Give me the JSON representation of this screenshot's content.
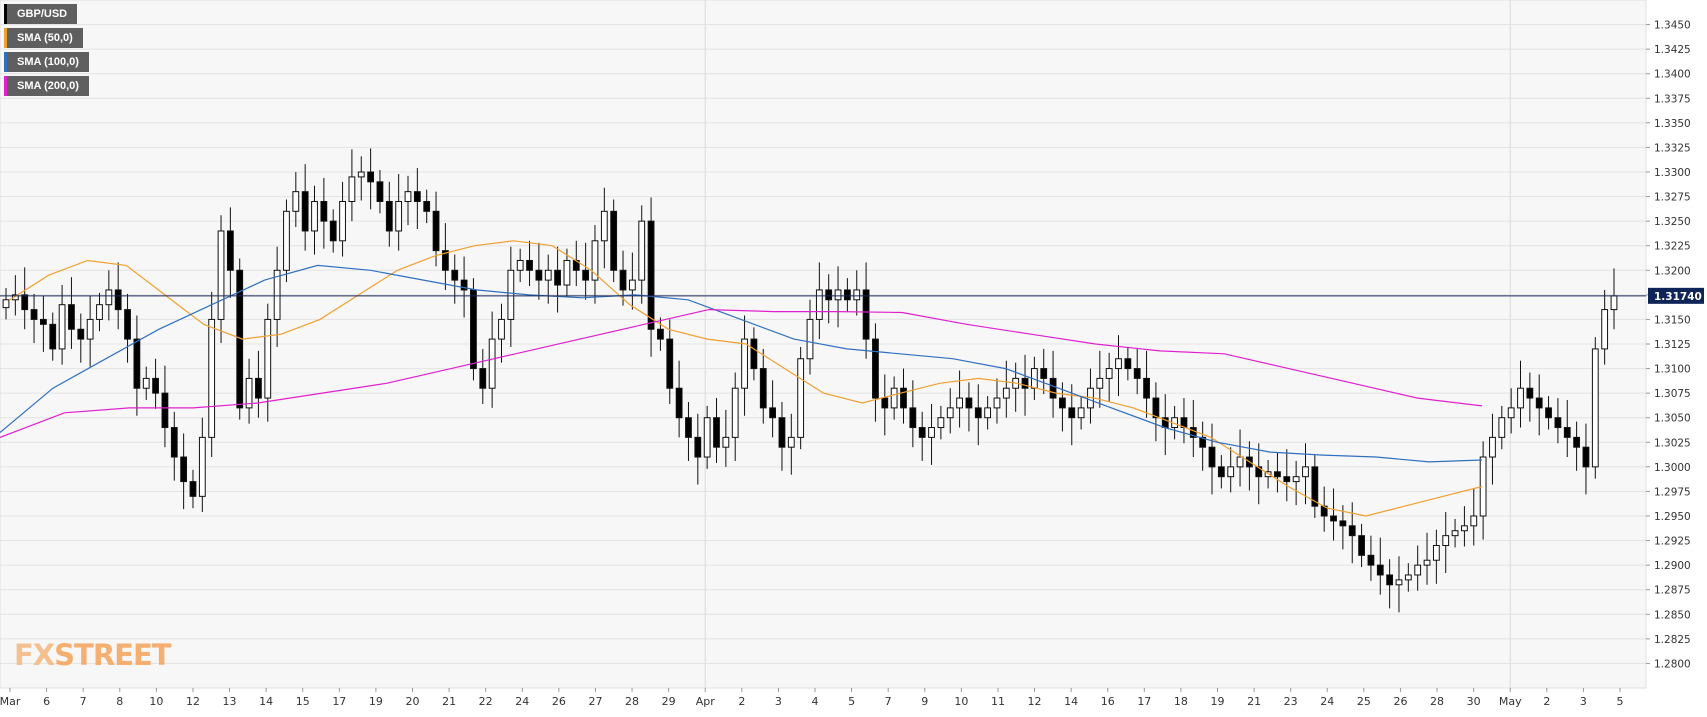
{
  "chart_data": {
    "type": "candlestick",
    "symbol": "GBP/USD",
    "ylim": [
      1.2775,
      1.3475
    ],
    "y_ticks": [
      "1.3450",
      "1.3425",
      "1.3400",
      "1.3375",
      "1.3350",
      "1.3325",
      "1.3300",
      "1.3275",
      "1.3250",
      "1.3225",
      "1.3200",
      "1.3175",
      "1.3150",
      "1.3125",
      "1.3100",
      "1.3075",
      "1.3050",
      "1.3025",
      "1.3000",
      "1.2975",
      "1.2950",
      "1.2925",
      "1.2900",
      "1.2875",
      "1.2850",
      "1.2825",
      "1.2800"
    ],
    "x_ticks": [
      "Mar",
      "6",
      "7",
      "8",
      "10",
      "12",
      "13",
      "14",
      "15",
      "17",
      "19",
      "20",
      "21",
      "22",
      "24",
      "26",
      "27",
      "28",
      "29",
      "Apr",
      "2",
      "3",
      "4",
      "5",
      "7",
      "9",
      "10",
      "11",
      "12",
      "14",
      "16",
      "17",
      "18",
      "19",
      "21",
      "23",
      "24",
      "25",
      "26",
      "28",
      "30",
      "May",
      "2",
      "3",
      "5"
    ],
    "current_price": 1.3174,
    "current_price_label": "1.31740",
    "ohlc_close_path": [
      1.317,
      1.3175,
      1.316,
      1.315,
      1.3145,
      1.312,
      1.3165,
      1.314,
      1.313,
      1.315,
      1.3165,
      1.318,
      1.316,
      1.313,
      1.308,
      1.309,
      1.3075,
      1.304,
      1.301,
      1.2985,
      1.297,
      1.303,
      1.315,
      1.324,
      1.32,
      1.306,
      1.309,
      1.307,
      1.315,
      1.32,
      1.326,
      1.328,
      1.324,
      1.327,
      1.325,
      1.323,
      1.327,
      1.3295,
      1.33,
      1.329,
      1.327,
      1.324,
      1.327,
      1.328,
      1.327,
      1.326,
      1.322,
      1.32,
      1.319,
      1.318,
      1.31,
      1.308,
      1.313,
      1.315,
      1.32,
      1.321,
      1.32,
      1.319,
      1.32,
      1.3185,
      1.321,
      1.32,
      1.319,
      1.323,
      1.326,
      1.32,
      1.318,
      1.319,
      1.325,
      1.314,
      1.313,
      1.308,
      1.305,
      1.303,
      1.301,
      1.305,
      1.302,
      1.303,
      1.308,
      1.313,
      1.31,
      1.306,
      1.305,
      1.302,
      1.303,
      1.311,
      1.315,
      1.318,
      1.317,
      1.318,
      1.317,
      1.318,
      1.313,
      1.307,
      1.306,
      1.308,
      1.306,
      1.304,
      1.303,
      1.304,
      1.305,
      1.306,
      1.307,
      1.306,
      1.305,
      1.306,
      1.307,
      1.308,
      1.309,
      1.308,
      1.31,
      1.309,
      1.307,
      1.306,
      1.305,
      1.306,
      1.308,
      1.309,
      1.31,
      1.311,
      1.31,
      1.309,
      1.307,
      1.305,
      1.304,
      1.305,
      1.304,
      1.303,
      1.302,
      1.3,
      1.299,
      1.3,
      1.301,
      1.3,
      1.299,
      1.2995,
      1.299,
      1.2985,
      1.299,
      1.3,
      1.296,
      1.295,
      1.2945,
      1.294,
      1.293,
      1.291,
      1.29,
      1.289,
      1.288,
      1.2885,
      1.289,
      1.29,
      1.2905,
      1.292,
      1.293,
      1.2935,
      1.294,
      1.295,
      1.301,
      1.303,
      1.305,
      1.306,
      1.308,
      1.307,
      1.306,
      1.305,
      1.304,
      1.303,
      1.302,
      1.3,
      1.312,
      1.316,
      1.3174
    ],
    "series": [
      {
        "name": "SMA (50,0)",
        "color": "#f0a030",
        "values": [
          1.317,
          1.3195,
          1.321,
          1.3205,
          1.3175,
          1.3145,
          1.313,
          1.3135,
          1.315,
          1.3175,
          1.32,
          1.3215,
          1.3225,
          1.323,
          1.3225,
          1.32,
          1.3165,
          1.314,
          1.313,
          1.3125,
          1.31,
          1.3075,
          1.3065,
          1.3075,
          1.3085,
          1.309,
          1.3085,
          1.3075,
          1.307,
          1.306,
          1.3045,
          1.303,
          1.3005,
          1.298,
          1.2958,
          1.295,
          1.296,
          1.297,
          1.298
        ]
      },
      {
        "name": "SMA (100,0)",
        "color": "#3070c0",
        "values": [
          1.3035,
          1.308,
          1.311,
          1.314,
          1.3165,
          1.319,
          1.3205,
          1.32,
          1.319,
          1.318,
          1.3175,
          1.3172,
          1.3175,
          1.317,
          1.315,
          1.313,
          1.312,
          1.3115,
          1.311,
          1.31,
          1.308,
          1.306,
          1.304,
          1.3025,
          1.3015,
          1.3012,
          1.301,
          1.3005,
          1.3007
        ]
      },
      {
        "name": "SMA (200,0)",
        "color": "#e020d0",
        "values": [
          1.303,
          1.3055,
          1.306,
          1.306,
          1.3065,
          1.3075,
          1.3085,
          1.31,
          1.3115,
          1.313,
          1.3145,
          1.316,
          1.3158,
          1.3158,
          1.3157,
          1.3145,
          1.3135,
          1.3125,
          1.3118,
          1.3115,
          1.31,
          1.3085,
          1.307,
          1.3062
        ]
      }
    ]
  },
  "legend": [
    {
      "label": "GBP/USD",
      "color": "#000000"
    },
    {
      "label": "SMA (50,0)",
      "color": "#f0a030"
    },
    {
      "label": "SMA (100,0)",
      "color": "#3070c0"
    },
    {
      "label": "SMA (200,0)",
      "color": "#e020d0"
    }
  ],
  "brand": {
    "prefix": "FX",
    "suffix": "STREET"
  }
}
